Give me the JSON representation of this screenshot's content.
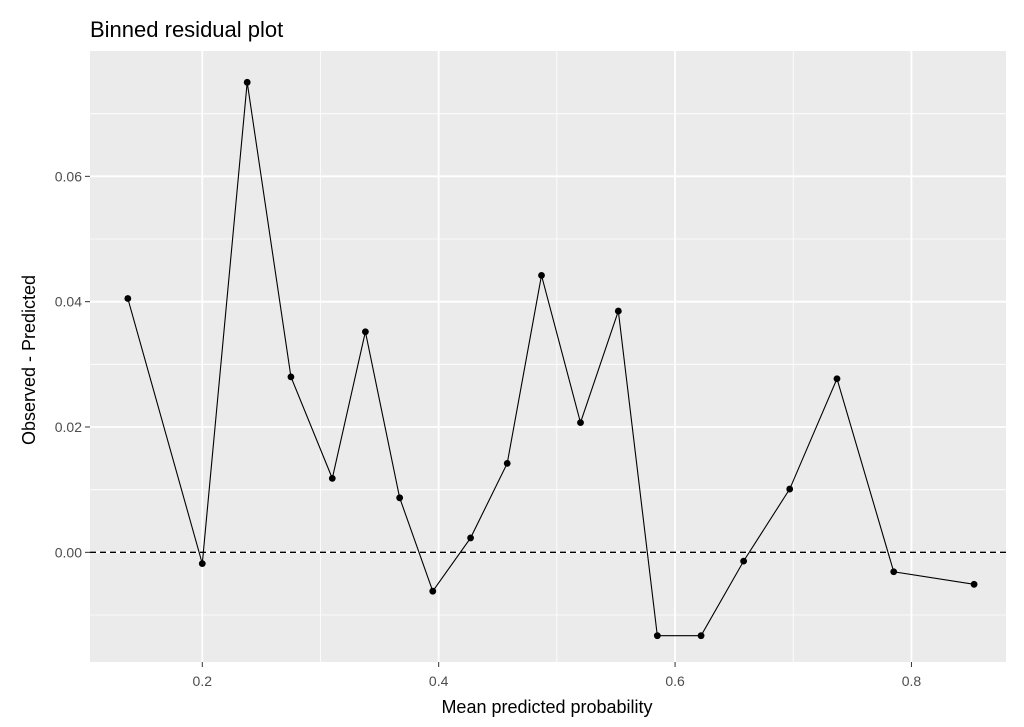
{
  "chart_data": {
    "type": "line",
    "title": "Binned residual plot",
    "xlabel": "Mean predicted probability",
    "ylabel": "Observed - Predicted",
    "xlim": [
      0.105,
      0.88
    ],
    "ylim": [
      -0.0175,
      0.08
    ],
    "x_ticks": [
      0.2,
      0.4,
      0.6,
      0.8
    ],
    "x_tick_labels": [
      "0.2",
      "0.4",
      "0.6",
      "0.8"
    ],
    "y_ticks": [
      0.0,
      0.02,
      0.04,
      0.06
    ],
    "y_tick_labels": [
      "0.00",
      "0.02",
      "0.04",
      "0.06"
    ],
    "grid": true,
    "reference_line": {
      "y": 0.0,
      "style": "dashed"
    },
    "series": [
      {
        "x": [
          0.137,
          0.2,
          0.238,
          0.275,
          0.31,
          0.338,
          0.367,
          0.395,
          0.427,
          0.458,
          0.487,
          0.52,
          0.552,
          0.585,
          0.622,
          0.658,
          0.697,
          0.737,
          0.785,
          0.853
        ],
        "y": [
          0.0405,
          -0.0018,
          0.075,
          0.028,
          0.0118,
          0.0352,
          0.0087,
          -0.0062,
          0.0023,
          0.0142,
          0.0442,
          0.0207,
          0.0385,
          -0.0133,
          -0.0133,
          -0.0014,
          0.0101,
          0.0277,
          -0.0031,
          -0.0051
        ]
      }
    ],
    "colors": {
      "panel": "#ebebeb",
      "grid": "#ffffff",
      "line": "#000000",
      "point": "#000000"
    }
  }
}
